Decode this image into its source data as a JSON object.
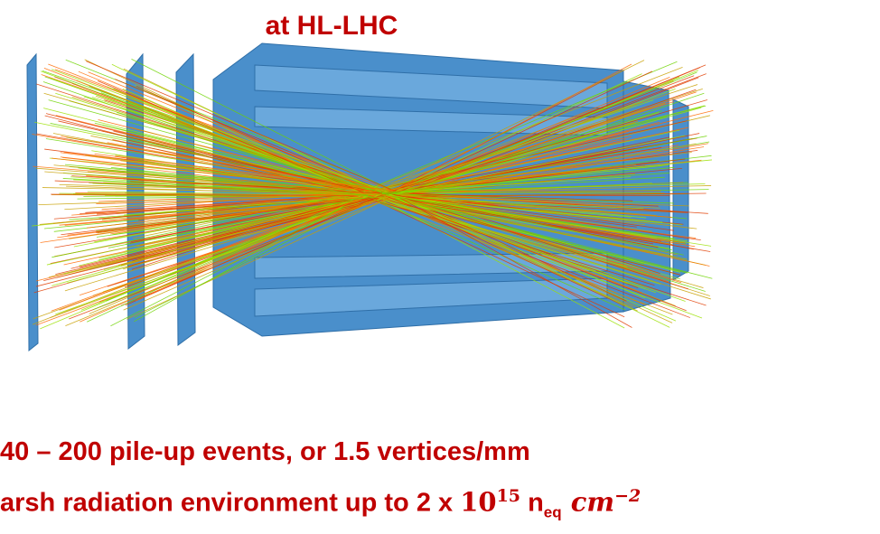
{
  "title": "at HL-LHC",
  "bullets": [
    {
      "text": "40 – 200 pile-up events, or 1.5 vertices/mm"
    },
    {
      "parts": [
        "arsh radiation environment up to 2 x ",
        "10",
        "15",
        " n",
        "eq",
        " cm",
        "−2"
      ]
    }
  ]
}
